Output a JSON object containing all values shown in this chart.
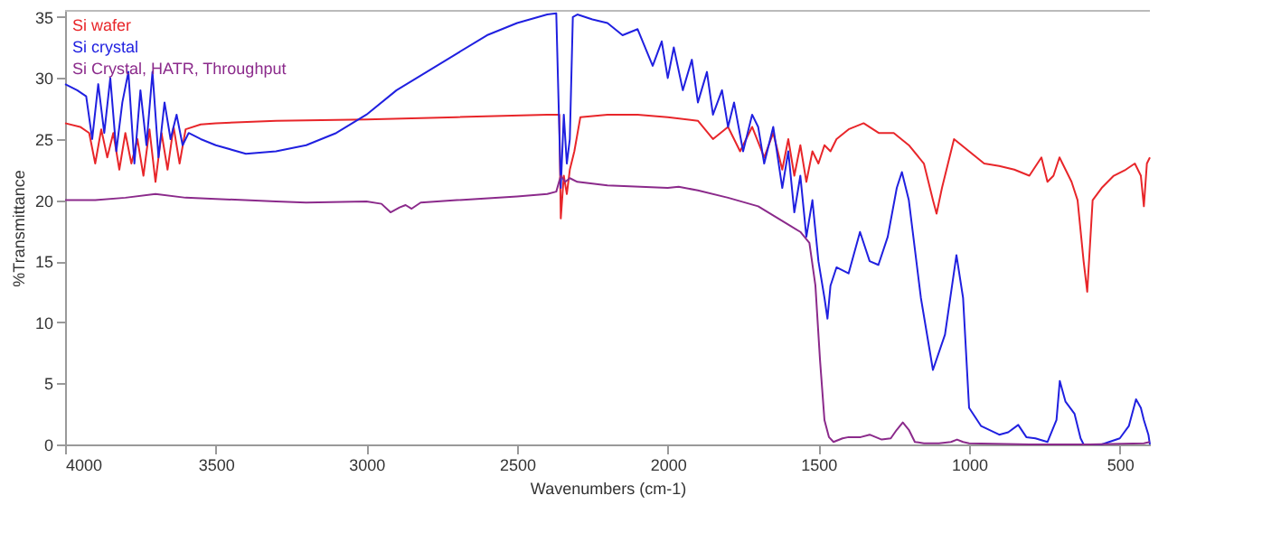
{
  "chart_data": {
    "type": "line",
    "xlabel": "Wavenumbers (cm-1)",
    "ylabel": "%Transmittance",
    "xlim": [
      4000,
      400
    ],
    "ylim": [
      0,
      35.5
    ],
    "xticks": [
      4000,
      3500,
      3000,
      2500,
      2000,
      1500,
      1000,
      500
    ],
    "yticks": [
      0,
      5,
      10,
      15,
      20,
      25,
      30,
      35
    ],
    "legend": "top left",
    "grid": false,
    "line_style": "solid",
    "marker": "none",
    "series": [
      {
        "name": "Si wafer",
        "color": "#e8262a",
        "x": [
          4000,
          3950,
          3920,
          3900,
          3880,
          3860,
          3840,
          3820,
          3800,
          3780,
          3760,
          3740,
          3720,
          3700,
          3680,
          3660,
          3640,
          3620,
          3600,
          3550,
          3500,
          3300,
          3000,
          2700,
          2400,
          2360,
          2355,
          2345,
          2335,
          2325,
          2310,
          2290,
          2200,
          2100,
          2000,
          1900,
          1850,
          1800,
          1760,
          1720,
          1680,
          1650,
          1620,
          1600,
          1580,
          1560,
          1540,
          1520,
          1500,
          1480,
          1460,
          1440,
          1400,
          1350,
          1300,
          1250,
          1200,
          1150,
          1120,
          1108,
          1090,
          1050,
          1000,
          950,
          900,
          850,
          800,
          760,
          740,
          720,
          700,
          680,
          660,
          640,
          620,
          608,
          590,
          560,
          520,
          480,
          450,
          430,
          420,
          410,
          400
        ],
        "values": [
          26.3,
          26,
          25.5,
          23,
          25.8,
          23.5,
          25.5,
          22.5,
          25.5,
          23,
          25,
          22,
          25.8,
          21.5,
          25.5,
          22.5,
          26,
          23,
          25.8,
          26.2,
          26.3,
          26.5,
          26.6,
          26.8,
          27,
          27,
          18.5,
          22,
          20.5,
          22.5,
          24,
          26.8,
          27,
          27,
          26.8,
          26.5,
          25,
          26,
          24,
          26,
          23.5,
          25.5,
          22.5,
          25,
          22,
          24.5,
          21.5,
          24,
          23,
          24.5,
          24,
          25,
          25.8,
          26.3,
          25.5,
          25.5,
          24.5,
          23,
          20,
          18.9,
          21,
          25,
          24,
          23,
          22.8,
          22.5,
          22,
          23.5,
          21.5,
          22,
          23.5,
          22.5,
          21.5,
          20,
          15,
          12.5,
          20,
          21,
          22,
          22.5,
          23,
          22,
          19.5,
          23,
          23.5
        ]
      },
      {
        "name": "Si crystal",
        "color": "#2020e0",
        "x": [
          4000,
          3960,
          3930,
          3910,
          3890,
          3870,
          3850,
          3830,
          3810,
          3790,
          3770,
          3750,
          3730,
          3710,
          3690,
          3670,
          3650,
          3630,
          3610,
          3590,
          3550,
          3500,
          3400,
          3300,
          3200,
          3100,
          3000,
          2900,
          2800,
          2700,
          2600,
          2500,
          2400,
          2370,
          2355,
          2345,
          2335,
          2325,
          2315,
          2300,
          2250,
          2200,
          2150,
          2100,
          2050,
          2020,
          2000,
          1980,
          1950,
          1920,
          1900,
          1870,
          1850,
          1820,
          1800,
          1780,
          1750,
          1720,
          1700,
          1680,
          1650,
          1620,
          1600,
          1580,
          1560,
          1540,
          1520,
          1500,
          1480,
          1470,
          1460,
          1440,
          1400,
          1362,
          1330,
          1301,
          1270,
          1240,
          1223,
          1200,
          1160,
          1120,
          1080,
          1042,
          1020,
          1000,
          960,
          900,
          870,
          837,
          810,
          780,
          740,
          710,
          699,
          680,
          650,
          630,
          620,
          560,
          500,
          470,
          446,
          430,
          420,
          405,
          400
        ],
        "values": [
          29.5,
          29,
          28.5,
          25,
          29.5,
          25.5,
          30,
          24,
          28,
          30.5,
          23,
          29,
          24.5,
          30.5,
          23.5,
          28,
          25,
          27,
          24.5,
          25.5,
          25,
          24.5,
          23.8,
          24,
          24.5,
          25.5,
          27,
          29,
          30.5,
          32,
          33.5,
          34.5,
          35.2,
          35.3,
          21,
          27,
          23,
          25,
          35,
          35.2,
          34.8,
          34.5,
          33.5,
          34,
          31,
          33,
          30,
          32.5,
          29,
          31.5,
          28,
          30.5,
          27,
          29,
          26,
          28,
          24,
          27,
          26,
          23,
          26,
          21,
          24,
          19,
          22,
          17,
          20,
          15,
          12,
          10.3,
          13,
          14.5,
          14,
          17.4,
          15,
          14.7,
          17,
          21,
          22.3,
          20,
          12,
          6.1,
          9,
          15.5,
          12,
          3,
          1.5,
          0.8,
          1,
          1.6,
          0.6,
          0.5,
          0.2,
          2,
          5.2,
          3.5,
          2.5,
          0.5,
          0,
          0,
          0.5,
          1.5,
          3.7,
          3,
          2,
          0.8,
          0
        ]
      },
      {
        "name": "Si Crystal, HATR, Throughput",
        "color": "#8b2a8b",
        "x": [
          4000,
          3900,
          3800,
          3700,
          3600,
          3500,
          3300,
          3200,
          3000,
          2950,
          2920,
          2890,
          2870,
          2850,
          2820,
          2700,
          2500,
          2400,
          2370,
          2355,
          2340,
          2325,
          2300,
          2200,
          2000,
          1964,
          1900,
          1800,
          1700,
          1600,
          1560,
          1530,
          1510,
          1495,
          1480,
          1465,
          1450,
          1420,
          1400,
          1360,
          1330,
          1290,
          1260,
          1240,
          1220,
          1200,
          1180,
          1150,
          1100,
          1060,
          1040,
          1020,
          1000,
          800,
          600,
          420,
          400
        ],
        "values": [
          20,
          20,
          20.2,
          20.5,
          20.2,
          20.1,
          19.9,
          19.8,
          19.9,
          19.7,
          19,
          19.4,
          19.6,
          19.3,
          19.8,
          20,
          20.3,
          20.5,
          20.7,
          22,
          21.5,
          21.8,
          21.5,
          21.2,
          21,
          21.1,
          20.8,
          20.2,
          19.5,
          18,
          17.4,
          16.5,
          13,
          7,
          2,
          0.6,
          0.2,
          0.5,
          0.6,
          0.6,
          0.8,
          0.4,
          0.5,
          1.2,
          1.8,
          1.2,
          0.2,
          0.1,
          0.1,
          0.2,
          0.4,
          0.2,
          0.1,
          0,
          0,
          0.1,
          0.2
        ]
      }
    ]
  }
}
